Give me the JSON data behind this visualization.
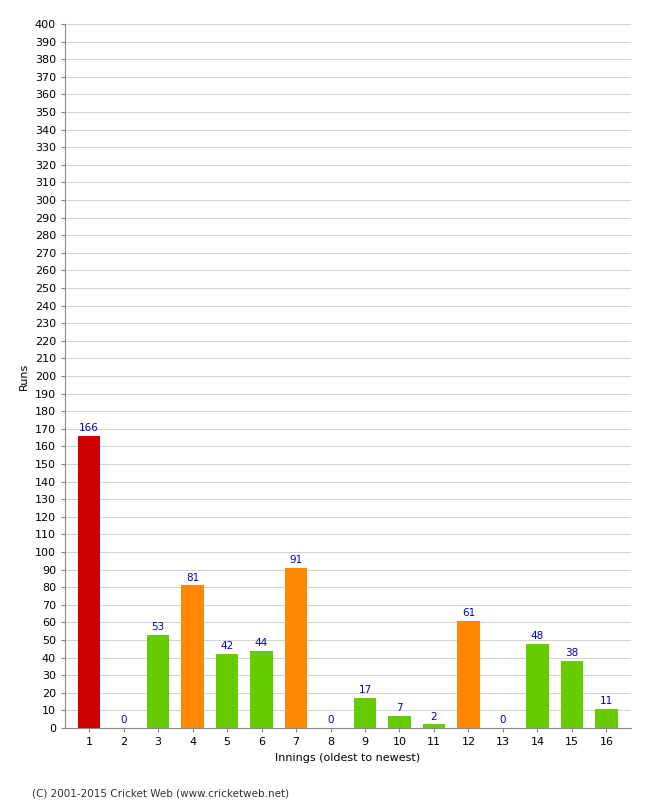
{
  "title": "",
  "xlabel": "Innings (oldest to newest)",
  "ylabel": "Runs",
  "ylim": [
    0,
    400
  ],
  "yticks": [
    0,
    10,
    20,
    30,
    40,
    50,
    60,
    70,
    80,
    90,
    100,
    110,
    120,
    130,
    140,
    150,
    160,
    170,
    180,
    190,
    200,
    210,
    220,
    230,
    240,
    250,
    260,
    270,
    280,
    290,
    300,
    310,
    320,
    330,
    340,
    350,
    360,
    370,
    380,
    390,
    400
  ],
  "categories": [
    "1",
    "2",
    "3",
    "4",
    "5",
    "6",
    "7",
    "8",
    "9",
    "10",
    "11",
    "12",
    "13",
    "14",
    "15",
    "16"
  ],
  "values": [
    166,
    0,
    53,
    81,
    42,
    44,
    91,
    0,
    17,
    7,
    2,
    61,
    0,
    48,
    38,
    11
  ],
  "bar_colors": [
    "#cc0000",
    "#66cc00",
    "#66cc00",
    "#ff8800",
    "#66cc00",
    "#66cc00",
    "#ff8800",
    "#66cc00",
    "#66cc00",
    "#66cc00",
    "#66cc00",
    "#ff8800",
    "#66cc00",
    "#66cc00",
    "#66cc00",
    "#66cc00"
  ],
  "label_color": "#0000cc",
  "background_color": "#ffffff",
  "plot_background": "#ffffff",
  "grid_color": "#cccccc",
  "axis_fontsize": 8,
  "label_fontsize": 7.5,
  "footer": "(C) 2001-2015 Cricket Web (www.cricketweb.net)"
}
